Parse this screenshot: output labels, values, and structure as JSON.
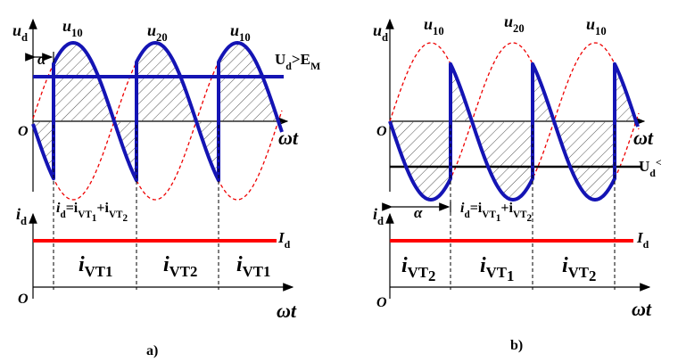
{
  "panels": [
    {
      "caption": "a)",
      "ud": [
        "u",
        "d"
      ],
      "alpha": "α",
      "curve_labels": [
        [
          "u",
          "10"
        ],
        [
          "u",
          "20"
        ],
        [
          "u",
          "10"
        ]
      ],
      "emf": [
        "U",
        "d",
        ">E",
        "M"
      ],
      "origin_top": "O",
      "wt_top": "ωt",
      "id": [
        "i",
        "d"
      ],
      "sum": [
        "i",
        "d",
        "=i",
        "VT",
        "1",
        "+i",
        "VT",
        "2"
      ],
      "Id": [
        "I",
        "d"
      ],
      "thyristors": [
        [
          "i",
          "VT",
          "1"
        ],
        [
          "i",
          "VT",
          "2"
        ],
        [
          "i",
          "VT",
          "1"
        ]
      ],
      "origin_bottom": "O",
      "wt_bottom": "ωt"
    },
    {
      "caption": "b)",
      "ud": [
        "u",
        "d"
      ],
      "alpha": "α",
      "curve_labels": [
        [
          "u",
          "10"
        ],
        [
          "u",
          "20"
        ],
        [
          "u",
          "10"
        ]
      ],
      "emf": [
        "U",
        "d",
        "<"
      ],
      "origin_top": "O",
      "wt_top": "ωt",
      "id": [
        "i",
        "d"
      ],
      "sum": [
        "i",
        "d",
        "=i",
        "VT",
        "1",
        "+i",
        "VT",
        "2"
      ],
      "Id": [
        "I",
        "d"
      ],
      "thyristors": [
        [
          "i",
          "VT",
          "2"
        ],
        [
          "i",
          "VT",
          "1"
        ],
        [
          "i",
          "VT",
          "2"
        ]
      ],
      "origin_bottom": "O",
      "wt_bottom": "ωt"
    }
  ]
}
